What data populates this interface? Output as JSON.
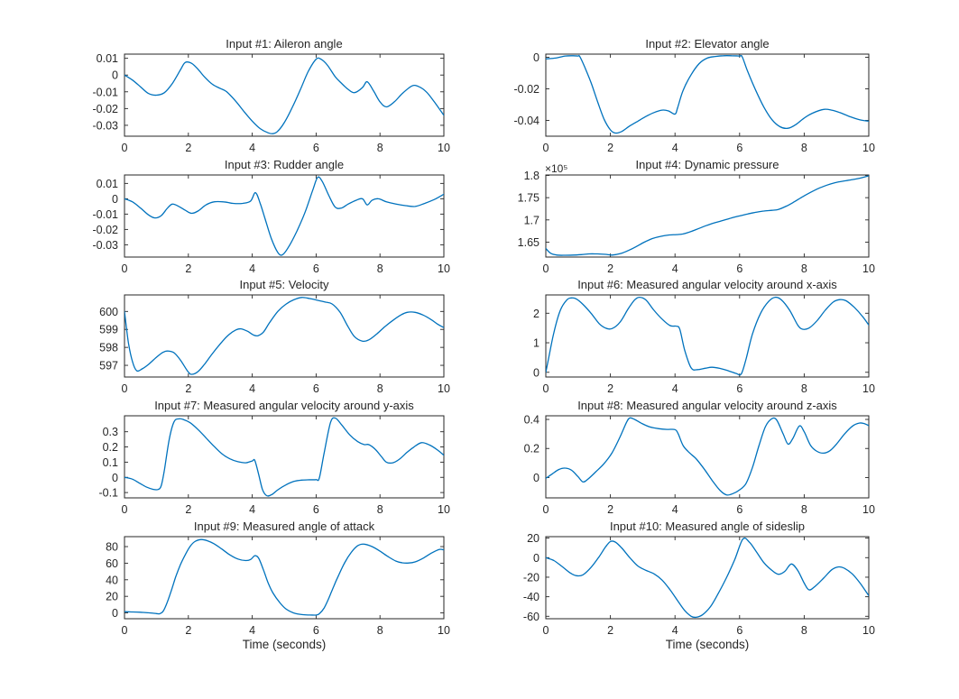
{
  "style": {
    "line_color": "#0072BD",
    "axis_color": "#262626",
    "text_color": "#262626",
    "background": "#ffffff"
  },
  "chart_data": [
    {
      "type": "line",
      "title": "Input #1: Aileron angle",
      "xlim": [
        0,
        10
      ],
      "xticks": [
        0,
        2,
        4,
        6,
        8,
        10
      ],
      "xtick_labels": [
        "0",
        "2",
        "4",
        "6",
        "8",
        "10"
      ],
      "ylim": [
        -0.0365,
        0.0125
      ],
      "ytick_values": [
        0.01,
        0,
        -0.01,
        -0.02,
        -0.03
      ],
      "ytick_labels": [
        "0.01",
        "0",
        "-0.01",
        "-0.02",
        "-0.03"
      ],
      "x": [
        0,
        0.25,
        0.5,
        0.75,
        1,
        1.25,
        1.5,
        1.75,
        1.9,
        2.1,
        2.3,
        2.5,
        2.75,
        3,
        3.2,
        3.5,
        3.75,
        4,
        4.25,
        4.5,
        4.65,
        4.8,
        5,
        5.25,
        5.5,
        5.75,
        6,
        6.15,
        6.35,
        6.6,
        6.8,
        7,
        7.2,
        7.45,
        7.6,
        7.8,
        8,
        8.2,
        8.45,
        8.7,
        9,
        9.2,
        9.45,
        9.7,
        10
      ],
      "y": [
        0,
        -0.003,
        -0.007,
        -0.011,
        -0.012,
        -0.0105,
        -0.005,
        0.003,
        0.0075,
        0.007,
        0.0035,
        -0.001,
        -0.0055,
        -0.008,
        -0.01,
        -0.016,
        -0.022,
        -0.0275,
        -0.032,
        -0.0345,
        -0.035,
        -0.0335,
        -0.0285,
        -0.0195,
        -0.009,
        0.002,
        0.0095,
        0.0095,
        0.006,
        -0.001,
        -0.005,
        -0.0085,
        -0.0105,
        -0.0075,
        -0.004,
        -0.0095,
        -0.016,
        -0.019,
        -0.016,
        -0.011,
        -0.0065,
        -0.0068,
        -0.01,
        -0.016,
        -0.024
      ]
    },
    {
      "type": "line",
      "title": "Input #2: Elevator angle",
      "xlim": [
        0,
        10
      ],
      "xticks": [
        0,
        2,
        4,
        6,
        8,
        10
      ],
      "xtick_labels": [
        "0",
        "2",
        "4",
        "6",
        "8",
        "10"
      ],
      "ylim": [
        -0.05,
        0.002
      ],
      "ytick_values": [
        0,
        -0.02,
        -0.04
      ],
      "ytick_labels": [
        "0",
        "-0.02",
        "-0.04"
      ],
      "x": [
        0,
        0.3,
        0.6,
        0.85,
        1.0,
        1.05,
        1.2,
        1.4,
        1.6,
        1.8,
        2.0,
        2.15,
        2.35,
        2.6,
        2.85,
        3.1,
        3.35,
        3.6,
        3.8,
        4.0,
        4.08,
        4.25,
        4.5,
        4.75,
        5.0,
        5.25,
        5.5,
        5.75,
        6.0,
        6.08,
        6.25,
        6.5,
        6.75,
        7.0,
        7.25,
        7.5,
        7.75,
        8.0,
        8.25,
        8.6,
        8.85,
        9.1,
        9.4,
        9.7,
        10
      ],
      "y": [
        -0.001,
        -0.0005,
        0.0008,
        0.001,
        0.0008,
        0.0005,
        -0.006,
        -0.016,
        -0.028,
        -0.039,
        -0.046,
        -0.048,
        -0.047,
        -0.0435,
        -0.0405,
        -0.0375,
        -0.035,
        -0.0335,
        -0.034,
        -0.036,
        -0.032,
        -0.021,
        -0.011,
        -0.004,
        -0.0005,
        0.0005,
        0.001,
        0.001,
        0.0008,
        0.0003,
        -0.009,
        -0.021,
        -0.0315,
        -0.0395,
        -0.044,
        -0.045,
        -0.0425,
        -0.0385,
        -0.0355,
        -0.033,
        -0.0335,
        -0.035,
        -0.0375,
        -0.0395,
        -0.0405
      ]
    },
    {
      "type": "line",
      "title": "Input #3: Rudder angle",
      "xlim": [
        0,
        10
      ],
      "xticks": [
        0,
        2,
        4,
        6,
        8,
        10
      ],
      "xtick_labels": [
        "0",
        "2",
        "4",
        "6",
        "8",
        "10"
      ],
      "ylim": [
        -0.038,
        0.0155
      ],
      "ytick_values": [
        0.01,
        0,
        -0.01,
        -0.02,
        -0.03
      ],
      "ytick_labels": [
        "0.01",
        "0",
        "-0.01",
        "-0.02",
        "-0.03"
      ],
      "x": [
        0,
        0.25,
        0.5,
        0.75,
        0.95,
        1.15,
        1.35,
        1.5,
        1.7,
        1.9,
        2.1,
        2.3,
        2.55,
        2.8,
        3.1,
        3.4,
        3.7,
        3.95,
        4.1,
        4.25,
        4.4,
        4.6,
        4.8,
        4.95,
        5.15,
        5.4,
        5.65,
        5.9,
        6.05,
        6.2,
        6.4,
        6.6,
        6.8,
        7.0,
        7.25,
        7.45,
        7.6,
        7.75,
        7.95,
        8.2,
        8.5,
        8.8,
        9.1,
        9.4,
        9.7,
        10
      ],
      "y": [
        0,
        -0.002,
        -0.006,
        -0.0105,
        -0.0125,
        -0.011,
        -0.006,
        -0.0035,
        -0.005,
        -0.0075,
        -0.0095,
        -0.008,
        -0.004,
        -0.002,
        -0.002,
        -0.003,
        -0.003,
        -0.0015,
        0.004,
        -0.003,
        -0.013,
        -0.026,
        -0.035,
        -0.0365,
        -0.031,
        -0.021,
        -0.009,
        0.006,
        0.014,
        0.011,
        0.002,
        -0.0055,
        -0.006,
        -0.0035,
        -0.001,
        0,
        -0.004,
        -0.001,
        0,
        -0.002,
        -0.0035,
        -0.0045,
        -0.005,
        -0.003,
        -0.0005,
        0.003
      ]
    },
    {
      "type": "line",
      "title": "Input #4: Dynamic pressure",
      "multiplier": "×10⁵",
      "y_unit_multiplier": 100000,
      "xlim": [
        0,
        10
      ],
      "xticks": [
        0,
        2,
        4,
        6,
        8,
        10
      ],
      "xtick_labels": [
        "0",
        "2",
        "4",
        "6",
        "8",
        "10"
      ],
      "ylim": [
        1.6165,
        1.801
      ],
      "ytick_values": [
        1.65,
        1.7,
        1.75,
        1.8
      ],
      "ytick_labels": [
        "1.65",
        "1.7",
        "1.75",
        "1.8"
      ],
      "x": [
        0,
        0.15,
        0.35,
        0.6,
        0.85,
        1.1,
        1.35,
        1.6,
        1.85,
        2.05,
        2.3,
        2.55,
        2.8,
        3.05,
        3.3,
        3.55,
        3.8,
        4.05,
        4.25,
        4.5,
        4.75,
        5,
        5.25,
        5.5,
        5.75,
        6,
        6.25,
        6.5,
        6.75,
        7,
        7.2,
        7.45,
        7.7,
        7.95,
        8.2,
        8.45,
        8.7,
        8.95,
        9.2,
        9.45,
        9.7,
        10
      ],
      "y": [
        1.636,
        1.625,
        1.621,
        1.6205,
        1.621,
        1.622,
        1.6235,
        1.6235,
        1.6225,
        1.621,
        1.624,
        1.631,
        1.64,
        1.65,
        1.658,
        1.663,
        1.666,
        1.667,
        1.6685,
        1.674,
        1.681,
        1.688,
        1.694,
        1.699,
        1.7045,
        1.709,
        1.7135,
        1.717,
        1.72,
        1.7215,
        1.7235,
        1.731,
        1.741,
        1.752,
        1.762,
        1.771,
        1.778,
        1.7835,
        1.787,
        1.79,
        1.7935,
        1.799
      ]
    },
    {
      "type": "line",
      "title": "Input #5: Velocity",
      "xlim": [
        0,
        10
      ],
      "xticks": [
        0,
        2,
        4,
        6,
        8,
        10
      ],
      "xtick_labels": [
        "0",
        "2",
        "4",
        "6",
        "8",
        "10"
      ],
      "ylim": [
        596.35,
        600.92
      ],
      "ytick_values": [
        597,
        598,
        599,
        600
      ],
      "ytick_labels": [
        "597",
        "598",
        "599",
        "600"
      ],
      "x": [
        0,
        0.12,
        0.25,
        0.38,
        0.55,
        0.75,
        1,
        1.2,
        1.35,
        1.55,
        1.75,
        2,
        2.12,
        2.3,
        2.5,
        2.75,
        3,
        3.25,
        3.5,
        3.65,
        3.85,
        4.05,
        4.18,
        4.35,
        4.55,
        4.8,
        5.05,
        5.3,
        5.55,
        5.8,
        6.05,
        6.3,
        6.5,
        6.75,
        7,
        7.2,
        7.45,
        7.65,
        7.9,
        8.15,
        8.4,
        8.65,
        8.85,
        9.1,
        9.35,
        9.6,
        9.8,
        10
      ],
      "y": [
        600,
        598.3,
        597.2,
        596.7,
        596.8,
        597.05,
        597.45,
        597.72,
        597.8,
        597.7,
        597.3,
        596.62,
        596.5,
        596.65,
        597.05,
        597.65,
        598.2,
        598.68,
        598.98,
        599.03,
        598.9,
        598.68,
        598.65,
        598.85,
        599.4,
        600.0,
        600.4,
        600.65,
        600.78,
        600.72,
        600.62,
        600.52,
        600.42,
        599.95,
        599.15,
        598.6,
        598.35,
        598.42,
        598.75,
        599.15,
        599.5,
        599.8,
        599.95,
        599.95,
        599.8,
        599.55,
        599.3,
        599.1
      ]
    },
    {
      "type": "line",
      "title": "Input #6: Measured angular velocity around x-axis",
      "xlim": [
        0,
        10
      ],
      "xticks": [
        0,
        2,
        4,
        6,
        8,
        10
      ],
      "xtick_labels": [
        "0",
        "2",
        "4",
        "6",
        "8",
        "10"
      ],
      "ylim": [
        -0.16,
        2.62
      ],
      "ytick_values": [
        0,
        1,
        2
      ],
      "ytick_labels": [
        "0",
        "1",
        "2"
      ],
      "x": [
        0,
        0.1,
        0.25,
        0.45,
        0.65,
        0.8,
        0.95,
        1.15,
        1.4,
        1.65,
        1.85,
        2.05,
        2.3,
        2.55,
        2.75,
        2.9,
        3.1,
        3.35,
        3.6,
        3.85,
        4.05,
        4.15,
        4.3,
        4.5,
        4.7,
        4.95,
        5.15,
        5.4,
        5.65,
        5.9,
        6.05,
        6.2,
        6.4,
        6.65,
        6.9,
        7.1,
        7.3,
        7.55,
        7.8,
        7.95,
        8.15,
        8.4,
        8.65,
        8.9,
        9.1,
        9.3,
        9.55,
        9.8,
        10
      ],
      "y": [
        0,
        0.55,
        1.35,
        2.1,
        2.45,
        2.52,
        2.48,
        2.3,
        2.0,
        1.65,
        1.5,
        1.48,
        1.7,
        2.15,
        2.45,
        2.54,
        2.45,
        2.1,
        1.8,
        1.58,
        1.56,
        1.45,
        0.75,
        0.15,
        0.09,
        0.14,
        0.17,
        0.13,
        0.05,
        -0.04,
        -0.06,
        0.45,
        1.3,
        2.0,
        2.4,
        2.54,
        2.45,
        2.1,
        1.6,
        1.46,
        1.5,
        1.75,
        2.1,
        2.38,
        2.46,
        2.42,
        2.2,
        1.9,
        1.6
      ]
    },
    {
      "type": "line",
      "title": "Input #7: Measured angular velocity around y-axis",
      "xlim": [
        0,
        10
      ],
      "xticks": [
        0,
        2,
        4,
        6,
        8,
        10
      ],
      "xtick_labels": [
        "0",
        "2",
        "4",
        "6",
        "8",
        "10"
      ],
      "ylim": [
        -0.135,
        0.405
      ],
      "ytick_values": [
        -0.1,
        0,
        0.1,
        0.2,
        0.3
      ],
      "ytick_labels": [
        "-0.1",
        "0",
        "0.1",
        "0.2",
        "0.3"
      ],
      "x": [
        0,
        0.25,
        0.5,
        0.7,
        0.9,
        1.05,
        1.15,
        1.25,
        1.4,
        1.55,
        1.7,
        1.85,
        2.05,
        2.3,
        2.55,
        2.8,
        3.05,
        3.3,
        3.55,
        3.8,
        4.0,
        4.08,
        4.2,
        4.32,
        4.45,
        4.6,
        4.8,
        5.05,
        5.3,
        5.55,
        5.8,
        6.0,
        6.1,
        6.25,
        6.45,
        6.6,
        6.8,
        7.05,
        7.3,
        7.5,
        7.65,
        7.85,
        8.05,
        8.2,
        8.4,
        8.6,
        8.85,
        9.05,
        9.3,
        9.55,
        9.8,
        10
      ],
      "y": [
        0,
        -0.012,
        -0.042,
        -0.065,
        -0.079,
        -0.08,
        -0.055,
        0.05,
        0.25,
        0.365,
        0.385,
        0.38,
        0.36,
        0.315,
        0.26,
        0.205,
        0.155,
        0.122,
        0.103,
        0.096,
        0.108,
        0.112,
        0.02,
        -0.08,
        -0.12,
        -0.115,
        -0.082,
        -0.05,
        -0.027,
        -0.018,
        -0.016,
        -0.015,
        -0.005,
        0.16,
        0.36,
        0.39,
        0.345,
        0.28,
        0.235,
        0.216,
        0.215,
        0.185,
        0.135,
        0.1,
        0.096,
        0.118,
        0.165,
        0.198,
        0.228,
        0.213,
        0.18,
        0.145
      ]
    },
    {
      "type": "line",
      "title": "Input #8: Measured angular velocity around z-axis",
      "xlim": [
        0,
        10
      ],
      "xticks": [
        0,
        2,
        4,
        6,
        8,
        10
      ],
      "xtick_labels": [
        "0",
        "2",
        "4",
        "6",
        "8",
        "10"
      ],
      "ylim": [
        -0.14,
        0.425
      ],
      "ytick_values": [
        0,
        0.2,
        0.4
      ],
      "ytick_labels": [
        "0",
        "0.2",
        "0.4"
      ],
      "x": [
        0,
        0.2,
        0.4,
        0.6,
        0.8,
        1.0,
        1.15,
        1.3,
        1.55,
        1.8,
        2.05,
        2.3,
        2.5,
        2.6,
        2.75,
        2.95,
        3.2,
        3.5,
        3.75,
        4.0,
        4.1,
        4.25,
        4.45,
        4.65,
        4.9,
        5.15,
        5.4,
        5.6,
        5.8,
        6.0,
        6.2,
        6.4,
        6.6,
        6.8,
        7.0,
        7.15,
        7.35,
        7.5,
        7.65,
        7.85,
        8.0,
        8.2,
        8.4,
        8.6,
        8.8,
        9.0,
        9.25,
        9.5,
        9.7,
        9.85,
        10
      ],
      "y": [
        -0.005,
        0.025,
        0.055,
        0.065,
        0.05,
        0.005,
        -0.03,
        -0.012,
        0.04,
        0.095,
        0.17,
        0.28,
        0.38,
        0.41,
        0.4,
        0.375,
        0.35,
        0.336,
        0.331,
        0.33,
        0.3,
        0.22,
        0.17,
        0.13,
        0.06,
        -0.02,
        -0.09,
        -0.12,
        -0.11,
        -0.085,
        -0.04,
        0.07,
        0.22,
        0.35,
        0.405,
        0.395,
        0.3,
        0.23,
        0.27,
        0.355,
        0.315,
        0.22,
        0.18,
        0.168,
        0.185,
        0.23,
        0.3,
        0.355,
        0.375,
        0.372,
        0.357
      ]
    },
    {
      "type": "line",
      "title": "Input #9: Measured angle of attack",
      "xlabel": "Time (seconds)",
      "xlim": [
        0,
        10
      ],
      "xticks": [
        0,
        2,
        4,
        6,
        8,
        10
      ],
      "xtick_labels": [
        "0",
        "2",
        "4",
        "6",
        "8",
        "10"
      ],
      "ylim": [
        -7,
        92
      ],
      "ytick_values": [
        0,
        20,
        40,
        60,
        80
      ],
      "ytick_labels": [
        "0",
        "20",
        "40",
        "60",
        "80"
      ],
      "x": [
        0,
        0.25,
        0.5,
        0.75,
        1.0,
        1.1,
        1.2,
        1.3,
        1.45,
        1.6,
        1.75,
        1.9,
        2.05,
        2.2,
        2.4,
        2.6,
        2.8,
        3.05,
        3.3,
        3.55,
        3.8,
        3.95,
        4.08,
        4.2,
        4.35,
        4.5,
        4.65,
        4.85,
        5.05,
        5.3,
        5.55,
        5.8,
        6.0,
        6.1,
        6.25,
        6.4,
        6.55,
        6.7,
        6.9,
        7.1,
        7.3,
        7.5,
        7.75,
        8.0,
        8.25,
        8.5,
        8.7,
        8.9,
        9.1,
        9.35,
        9.6,
        9.85,
        10
      ],
      "y": [
        1.5,
        1.2,
        0.8,
        0.2,
        -0.8,
        -1.0,
        1.5,
        9,
        25,
        43,
        58,
        70,
        80,
        86,
        88.5,
        87,
        83.5,
        77,
        70,
        65,
        63.2,
        64.5,
        69,
        66,
        52,
        36,
        24,
        13,
        5,
        0,
        -2,
        -2.5,
        -2.5,
        -1,
        6,
        18,
        32,
        45,
        61,
        73,
        81,
        83,
        80,
        74.5,
        68,
        62.5,
        60.5,
        60.2,
        61.5,
        66,
        72,
        76.5,
        76
      ]
    },
    {
      "type": "line",
      "title": "Input #10: Measured angle of sideslip",
      "xlabel": "Time (seconds)",
      "xlim": [
        0,
        10
      ],
      "xticks": [
        0,
        2,
        4,
        6,
        8,
        10
      ],
      "xtick_labels": [
        "0",
        "2",
        "4",
        "6",
        "8",
        "10"
      ],
      "ylim": [
        -62.5,
        21.5
      ],
      "ytick_values": [
        20,
        0,
        -20,
        -40,
        -60
      ],
      "ytick_labels": [
        "20",
        "0",
        "-20",
        "-40",
        "-60"
      ],
      "x": [
        0,
        0.25,
        0.5,
        0.75,
        0.95,
        1.15,
        1.4,
        1.65,
        1.85,
        2.0,
        2.15,
        2.35,
        2.6,
        2.85,
        3.1,
        3.35,
        3.6,
        3.85,
        4.1,
        4.3,
        4.5,
        4.65,
        4.85,
        5.1,
        5.35,
        5.6,
        5.85,
        6.1,
        6.3,
        6.5,
        6.75,
        7.0,
        7.2,
        7.4,
        7.6,
        7.8,
        8.0,
        8.15,
        8.35,
        8.6,
        8.85,
        9.05,
        9.25,
        9.5,
        9.75,
        10
      ],
      "y": [
        0,
        -3,
        -9,
        -15.5,
        -18.5,
        -17.5,
        -10,
        1,
        11,
        16.5,
        16,
        10,
        0,
        -8.5,
        -13,
        -16.5,
        -23,
        -33,
        -45,
        -54,
        -60,
        -61,
        -58.5,
        -50,
        -36,
        -20,
        -2,
        19,
        16,
        7,
        -5,
        -13,
        -17,
        -14,
        -6.5,
        -13,
        -26,
        -33,
        -29,
        -21,
        -12.5,
        -9.5,
        -11,
        -17,
        -27,
        -39
      ]
    }
  ]
}
